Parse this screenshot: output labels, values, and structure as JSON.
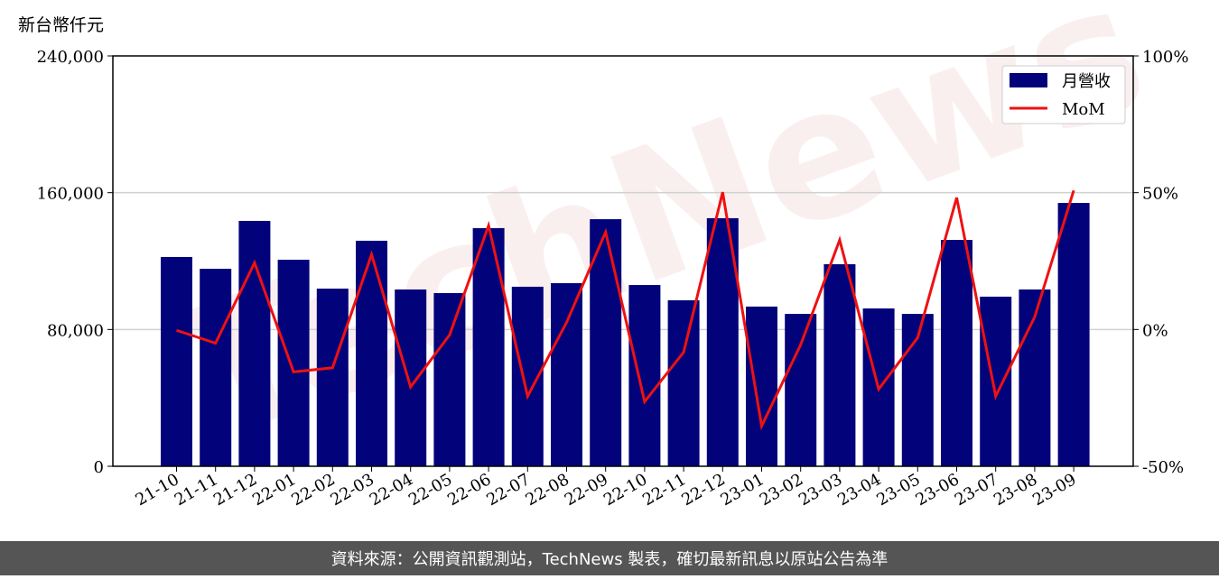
{
  "chart_data": {
    "type": "bar_line",
    "y_label": "新台幣仟元",
    "watermark": "TechNews",
    "footer": "資料來源：公開資訊觀測站，TechNews 製表，確切最新訊息以原站公告為準",
    "categories": [
      "21-10",
      "21-11",
      "21-12",
      "22-01",
      "22-02",
      "22-03",
      "22-04",
      "22-05",
      "22-06",
      "22-07",
      "22-08",
      "22-09",
      "22-10",
      "22-11",
      "22-12",
      "23-01",
      "23-02",
      "23-03",
      "23-04",
      "23-05",
      "23-06",
      "23-07",
      "23-08",
      "23-09"
    ],
    "series": [
      {
        "name": "月營收",
        "type": "bar",
        "color": "#02027a",
        "axis": "y",
        "values": [
          122400,
          115500,
          143500,
          120800,
          103900,
          131900,
          103400,
          101300,
          139300,
          105000,
          107100,
          144500,
          106000,
          97100,
          145100,
          93400,
          89100,
          118200,
          92300,
          89100,
          132400,
          99200,
          103400,
          154000
        ]
      },
      {
        "name": "MoM",
        "type": "line",
        "color": "#ee1111",
        "axis": "y2",
        "values": [
          -0.3,
          -5,
          24.4,
          -15.5,
          -14,
          27.4,
          -21,
          -2,
          38,
          -24.4,
          2.6,
          35.6,
          -26.4,
          -8.3,
          50.2,
          -35.3,
          -5.6,
          32.7,
          -21.8,
          -3,
          48.2,
          -24.4,
          4.6,
          50.8
        ]
      }
    ],
    "ylim": [
      0,
      240000
    ],
    "yticks": [
      0,
      {
        "value": 80000,
        "label": "80,000"
      },
      {
        "value": 160000,
        "label": "160,000"
      },
      {
        "value": 240000,
        "label": "240,000"
      }
    ],
    "y2lim": [
      -50,
      100
    ],
    "y2ticks": [
      {
        "value": -50,
        "label": "-50%"
      },
      {
        "value": 0,
        "label": "0%"
      },
      {
        "value": 50,
        "label": "50%"
      },
      {
        "value": 100,
        "label": "100%"
      }
    ],
    "grid": true,
    "legend": "upper right"
  }
}
